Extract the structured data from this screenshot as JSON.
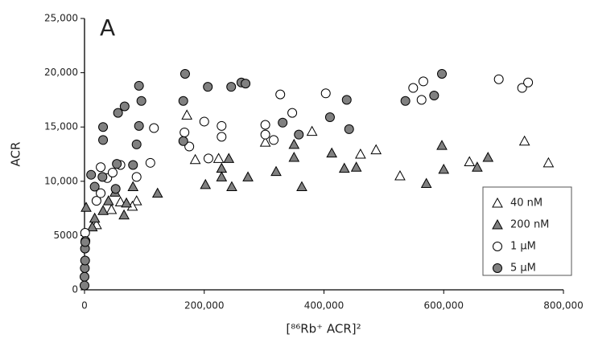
{
  "chart_data": {
    "type": "scatter",
    "title": "A",
    "x_label": "[⁸⁶Rb⁺ ACR]²",
    "y_label": "ACR",
    "xlim": [
      0,
      800000
    ],
    "ylim": [
      0,
      25000
    ],
    "xticks": [
      0,
      {
        "value": 200000,
        "label": "200,000"
      },
      {
        "value": 400000,
        "label": "400,000"
      },
      {
        "value": 600000,
        "label": "600,000"
      },
      {
        "value": 800000,
        "label": "800,000"
      }
    ],
    "yticks": [
      0,
      5000,
      {
        "value": 10000,
        "label": "10,000"
      },
      {
        "value": 15000,
        "label": "15,000"
      },
      {
        "value": 20000,
        "label": "20,000"
      },
      {
        "value": 25000,
        "label": "25,000"
      }
    ],
    "legend": "lower right",
    "series": [
      {
        "name": "40 nM",
        "marker": "triangle",
        "color": "#ffffff",
        "x": [
          171000,
          224000,
          185000,
          302000,
          380000,
          461000,
          487000,
          527000,
          643000,
          735000,
          775000,
          60000,
          87000,
          80000,
          45000,
          20000
        ],
        "values": [
          16100,
          12100,
          12000,
          13600,
          14600,
          12500,
          12900,
          10500,
          11800,
          13700,
          11700,
          8100,
          8200,
          7700,
          7400,
          6000
        ]
      },
      {
        "name": "200 nM",
        "marker": "triangle",
        "color": "#808080",
        "x": [
          2700,
          13000,
          17000,
          31000,
          40000,
          51000,
          66000,
          70000,
          81000,
          122000,
          202000,
          229000,
          229000,
          241000,
          246000,
          273000,
          320000,
          350000,
          350000,
          363000,
          413000,
          434000,
          454000,
          571000,
          597000,
          600000,
          656000,
          674000
        ],
        "values": [
          7600,
          5800,
          6600,
          7300,
          8200,
          9000,
          6900,
          8000,
          9500,
          8900,
          9700,
          11200,
          10400,
          12100,
          9500,
          10400,
          10900,
          13400,
          12200,
          9500,
          12600,
          11200,
          11300,
          9800,
          13300,
          11100,
          11300,
          12200
        ]
      },
      {
        "name": "1 μM",
        "marker": "circle",
        "color": "#ffffff",
        "x": [
          1000,
          1500,
          20000,
          27000,
          27000,
          38000,
          47000,
          60000,
          87000,
          110000,
          116000,
          167000,
          175000,
          200000,
          207000,
          229000,
          229000,
          302000,
          302000,
          316000,
          327000,
          347000,
          403000,
          549000,
          563000,
          566000,
          692000,
          731000,
          741000
        ],
        "values": [
          5250,
          4500,
          8200,
          8900,
          11300,
          10300,
          10800,
          11500,
          10400,
          11700,
          14900,
          14500,
          13200,
          15500,
          12100,
          15100,
          14100,
          15200,
          14300,
          13800,
          18000,
          16300,
          18100,
          18600,
          17500,
          19200,
          19400,
          18600,
          19100
        ]
      },
      {
        "name": "5 μM",
        "marker": "circle",
        "color": "#808080",
        "x": [
          11000,
          17000,
          30000,
          31000,
          31000,
          52000,
          54000,
          56000,
          67000,
          81000,
          87000,
          91000,
          95000,
          91000,
          165000,
          165000,
          168000,
          206000,
          245000,
          262000,
          269000,
          331000,
          358000,
          410000,
          438000,
          442000,
          536000,
          584000,
          597000,
          0,
          500,
          1000,
          800,
          0,
          1200
        ],
        "values": [
          10600,
          9500,
          10400,
          15000,
          13800,
          9300,
          11600,
          16300,
          16900,
          11500,
          13400,
          18800,
          17400,
          15100,
          13700,
          17400,
          19900,
          18700,
          18700,
          19100,
          19000,
          15400,
          14300,
          15900,
          17500,
          14800,
          17400,
          17900,
          19900,
          1200,
          2000,
          2700,
          3800,
          400,
          4400
        ]
      }
    ]
  }
}
